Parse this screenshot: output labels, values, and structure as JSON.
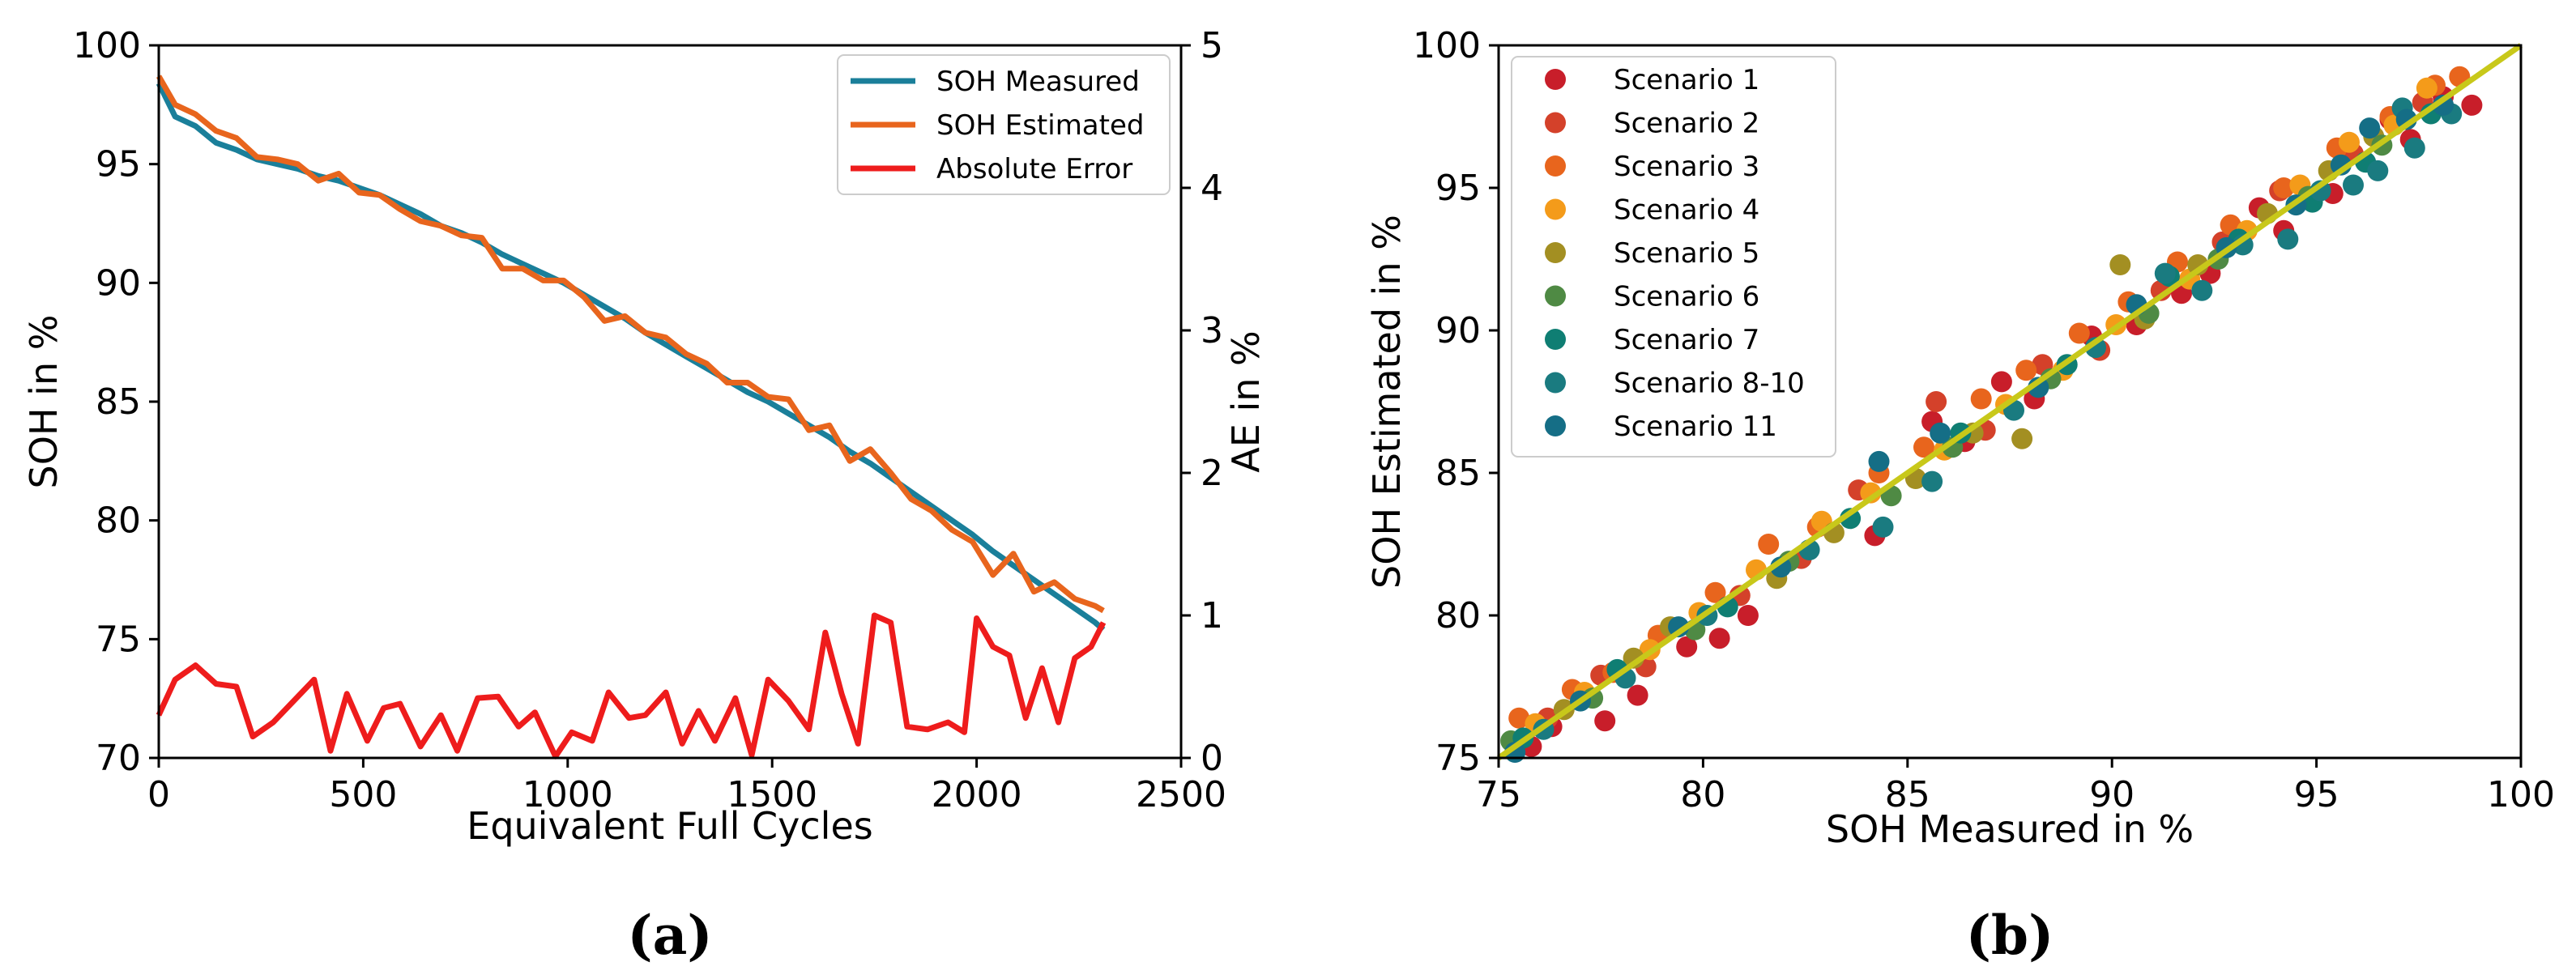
{
  "chart_data": [
    {
      "type": "line",
      "panel": "a",
      "caption": "(a)",
      "xlabel": "Equivalent Full Cycles",
      "ylabel": "SOH in %",
      "y2label": "AE in %",
      "xlim": [
        0,
        2500
      ],
      "ylim": [
        70,
        100
      ],
      "y2lim": [
        0,
        5
      ],
      "xticks": [
        "0",
        "500",
        "1000",
        "1500",
        "2000",
        "2500"
      ],
      "yticks": [
        "70",
        "75",
        "80",
        "85",
        "90",
        "95",
        "100"
      ],
      "y2ticks": [
        "0",
        "1",
        "2",
        "3",
        "4",
        "5"
      ],
      "legend_position": "top-right",
      "grid": false,
      "series": [
        {
          "name": "SOH Measured",
          "color": "#1a7f9a",
          "axis": "left",
          "x": [
            0,
            40,
            90,
            140,
            190,
            240,
            290,
            340,
            390,
            440,
            490,
            540,
            590,
            640,
            690,
            740,
            790,
            840,
            890,
            940,
            990,
            1040,
            1090,
            1140,
            1190,
            1240,
            1290,
            1340,
            1390,
            1440,
            1490,
            1540,
            1590,
            1640,
            1690,
            1740,
            1790,
            1840,
            1890,
            1940,
            1990,
            2040,
            2090,
            2140,
            2190,
            2240,
            2290,
            2310
          ],
          "values": [
            98.4,
            97.0,
            96.6,
            95.9,
            95.6,
            95.2,
            95.0,
            94.8,
            94.5,
            94.3,
            94.0,
            93.7,
            93.3,
            92.9,
            92.4,
            92.1,
            91.7,
            91.2,
            90.8,
            90.4,
            90.0,
            89.5,
            89.0,
            88.5,
            87.9,
            87.4,
            86.9,
            86.4,
            85.9,
            85.4,
            85.0,
            84.5,
            84.0,
            83.5,
            82.9,
            82.4,
            81.8,
            81.2,
            80.6,
            80.0,
            79.4,
            78.7,
            78.1,
            77.5,
            76.9,
            76.3,
            75.7,
            75.4
          ]
        },
        {
          "name": "SOH Estimated",
          "color": "#e8651d",
          "axis": "left",
          "x": [
            0,
            40,
            90,
            140,
            190,
            240,
            290,
            340,
            390,
            440,
            490,
            540,
            590,
            640,
            690,
            740,
            790,
            840,
            890,
            940,
            990,
            1040,
            1090,
            1140,
            1190,
            1240,
            1290,
            1340,
            1390,
            1440,
            1490,
            1540,
            1590,
            1640,
            1690,
            1740,
            1790,
            1840,
            1890,
            1940,
            1990,
            2040,
            2090,
            2140,
            2190,
            2240,
            2290,
            2310
          ],
          "values": [
            98.7,
            97.5,
            97.1,
            96.4,
            96.1,
            95.3,
            95.2,
            95.0,
            94.3,
            94.6,
            93.8,
            93.7,
            93.1,
            92.6,
            92.4,
            92.0,
            91.9,
            90.6,
            90.6,
            90.1,
            90.1,
            89.4,
            88.4,
            88.6,
            87.9,
            87.7,
            87.0,
            86.6,
            85.8,
            85.8,
            85.2,
            85.1,
            83.8,
            84.0,
            82.5,
            83.0,
            82.0,
            80.9,
            80.4,
            79.6,
            79.1,
            77.7,
            78.6,
            77.0,
            77.4,
            76.7,
            76.4,
            76.2
          ]
        },
        {
          "name": "Absolute Error",
          "color": "#ee1c1c",
          "axis": "right",
          "x": [
            0,
            40,
            90,
            140,
            190,
            230,
            280,
            330,
            380,
            420,
            460,
            510,
            550,
            590,
            640,
            690,
            730,
            780,
            830,
            880,
            920,
            970,
            1010,
            1060,
            1100,
            1150,
            1190,
            1240,
            1280,
            1320,
            1360,
            1410,
            1450,
            1490,
            1540,
            1590,
            1630,
            1670,
            1710,
            1750,
            1790,
            1830,
            1880,
            1930,
            1970,
            2000,
            2040,
            2080,
            2120,
            2160,
            2200,
            2240,
            2280,
            2310
          ],
          "values": [
            0.3,
            0.55,
            0.65,
            0.52,
            0.5,
            0.15,
            0.25,
            0.4,
            0.55,
            0.05,
            0.45,
            0.12,
            0.35,
            0.38,
            0.08,
            0.3,
            0.05,
            0.42,
            0.43,
            0.22,
            0.32,
            0.01,
            0.18,
            0.12,
            0.46,
            0.28,
            0.3,
            0.46,
            0.1,
            0.33,
            0.12,
            0.42,
            0.02,
            0.55,
            0.4,
            0.2,
            0.88,
            0.45,
            0.1,
            1.0,
            0.95,
            0.22,
            0.2,
            0.25,
            0.18,
            0.98,
            0.78,
            0.72,
            0.28,
            0.63,
            0.25,
            0.7,
            0.78,
            0.95
          ]
        }
      ]
    },
    {
      "type": "scatter",
      "panel": "b",
      "caption": "(b)",
      "xlabel": "SOH Measured in %",
      "ylabel": "SOH Estimated in %",
      "xlim": [
        75,
        100
      ],
      "ylim": [
        75,
        100
      ],
      "xticks": [
        "75",
        "80",
        "85",
        "90",
        "95",
        "100"
      ],
      "yticks": [
        "75",
        "80",
        "85",
        "90",
        "95",
        "100"
      ],
      "legend_position": "top-left",
      "grid": false,
      "reference_line": {
        "x": [
          75,
          100
        ],
        "y": [
          75,
          100
        ],
        "color": "#c8c81a"
      },
      "series": [
        {
          "name": "Scenario 1",
          "color": "#c81e2a",
          "points": [
            [
              75.8,
              75.4
            ],
            [
              76.3,
              76.1
            ],
            [
              77.6,
              76.3
            ],
            [
              78.4,
              77.2
            ],
            [
              79.6,
              78.9
            ],
            [
              80.4,
              79.2
            ],
            [
              81.1,
              80.0
            ],
            [
              84.2,
              82.8
            ],
            [
              85.6,
              86.8
            ],
            [
              86.4,
              86.1
            ],
            [
              87.3,
              88.2
            ],
            [
              88.1,
              87.6
            ],
            [
              89.5,
              89.8
            ],
            [
              90.6,
              90.2
            ],
            [
              91.7,
              91.3
            ],
            [
              92.4,
              92.0
            ],
            [
              93.6,
              94.3
            ],
            [
              94.2,
              93.5
            ],
            [
              95.4,
              94.8
            ],
            [
              96.8,
              97.4
            ],
            [
              97.3,
              96.7
            ],
            [
              98.1,
              98.2
            ],
            [
              98.8,
              97.9
            ]
          ]
        },
        {
          "name": "Scenario 2",
          "color": "#d4412a",
          "points": [
            [
              76.2,
              76.4
            ],
            [
              77.5,
              77.9
            ],
            [
              78.6,
              78.2
            ],
            [
              80.9,
              80.7
            ],
            [
              82.4,
              82.0
            ],
            [
              83.8,
              84.4
            ],
            [
              85.7,
              87.5
            ],
            [
              86.9,
              86.5
            ],
            [
              88.3,
              88.8
            ],
            [
              89.7,
              89.3
            ],
            [
              91.2,
              91.4
            ],
            [
              92.7,
              93.1
            ],
            [
              94.1,
              94.9
            ],
            [
              95.9,
              96.2
            ],
            [
              97.6,
              98.0
            ]
          ]
        },
        {
          "name": "Scenario 3",
          "color": "#e8651d",
          "points": [
            [
              75.5,
              76.4
            ],
            [
              76.8,
              77.4
            ],
            [
              77.8,
              78.0
            ],
            [
              78.9,
              79.3
            ],
            [
              80.3,
              80.8
            ],
            [
              81.6,
              82.5
            ],
            [
              82.8,
              83.1
            ],
            [
              84.3,
              85.0
            ],
            [
              85.4,
              85.9
            ],
            [
              86.8,
              87.6
            ],
            [
              87.9,
              88.6
            ],
            [
              89.2,
              89.9
            ],
            [
              90.4,
              91.0
            ],
            [
              91.6,
              92.4
            ],
            [
              92.9,
              93.7
            ],
            [
              94.2,
              95.0
            ],
            [
              95.5,
              96.4
            ],
            [
              96.8,
              97.5
            ],
            [
              97.9,
              98.6
            ],
            [
              98.5,
              98.9
            ]
          ]
        },
        {
          "name": "Scenario 4",
          "color": "#f49b1a",
          "points": [
            [
              75.9,
              76.2
            ],
            [
              77.1,
              77.3
            ],
            [
              78.7,
              78.8
            ],
            [
              79.9,
              80.1
            ],
            [
              81.3,
              81.6
            ],
            [
              82.9,
              83.3
            ],
            [
              84.1,
              84.3
            ],
            [
              85.9,
              85.8
            ],
            [
              87.4,
              87.4
            ],
            [
              88.8,
              88.6
            ],
            [
              90.1,
              90.2
            ],
            [
              91.9,
              91.8
            ],
            [
              93.3,
              93.5
            ],
            [
              94.6,
              95.1
            ],
            [
              95.8,
              96.6
            ],
            [
              96.9,
              97.2
            ],
            [
              97.7,
              98.5
            ]
          ]
        },
        {
          "name": "Scenario 5",
          "color": "#a38f22",
          "points": [
            [
              76.6,
              76.7
            ],
            [
              78.3,
              78.5
            ],
            [
              79.2,
              79.6
            ],
            [
              81.8,
              81.3
            ],
            [
              83.2,
              82.9
            ],
            [
              85.2,
              84.8
            ],
            [
              86.6,
              86.4
            ],
            [
              87.8,
              86.2
            ],
            [
              90.2,
              92.3
            ],
            [
              90.8,
              90.4
            ],
            [
              92.1,
              92.3
            ],
            [
              93.8,
              94.1
            ],
            [
              95.3,
              95.6
            ],
            [
              96.4,
              96.8
            ]
          ]
        },
        {
          "name": "Scenario 6",
          "color": "#4f8a44",
          "points": [
            [
              75.3,
              75.6
            ],
            [
              77.3,
              77.1
            ],
            [
              79.8,
              79.5
            ],
            [
              82.1,
              81.9
            ],
            [
              84.6,
              84.2
            ],
            [
              86.1,
              85.9
            ],
            [
              88.5,
              88.3
            ],
            [
              90.9,
              90.6
            ],
            [
              92.6,
              92.5
            ],
            [
              94.8,
              94.7
            ],
            [
              96.6,
              96.5
            ]
          ]
        },
        {
          "name": "Scenario 7",
          "color": "#0f7e73",
          "points": [
            [
              75.6,
              75.7
            ],
            [
              77.9,
              78.1
            ],
            [
              80.6,
              80.3
            ],
            [
              83.6,
              83.4
            ],
            [
              86.3,
              86.4
            ],
            [
              88.9,
              88.8
            ],
            [
              91.4,
              91.9
            ],
            [
              93.1,
              93.2
            ],
            [
              94.9,
              94.5
            ],
            [
              96.2,
              95.9
            ],
            [
              97.8,
              97.6
            ]
          ]
        },
        {
          "name": "Scenario 8-10",
          "color": "#1a7b80",
          "points": [
            [
              76.1,
              76.0
            ],
            [
              78.1,
              77.8
            ],
            [
              80.1,
              80.0
            ],
            [
              82.6,
              82.3
            ],
            [
              84.4,
              83.1
            ],
            [
              85.6,
              84.7
            ],
            [
              87.6,
              87.2
            ],
            [
              89.6,
              89.4
            ],
            [
              91.3,
              92.0
            ],
            [
              92.2,
              91.4
            ],
            [
              93.2,
              93.0
            ],
            [
              94.3,
              93.2
            ],
            [
              95.1,
              94.9
            ],
            [
              95.9,
              95.1
            ],
            [
              96.5,
              95.6
            ],
            [
              97.1,
              97.8
            ],
            [
              97.4,
              96.4
            ],
            [
              98.3,
              97.6
            ]
          ]
        },
        {
          "name": "Scenario 11",
          "color": "#156e86",
          "points": [
            [
              75.4,
              75.2
            ],
            [
              77.0,
              77.0
            ],
            [
              79.4,
              79.6
            ],
            [
              81.9,
              81.7
            ],
            [
              84.3,
              85.4
            ],
            [
              85.8,
              86.4
            ],
            [
              88.2,
              88.0
            ],
            [
              90.6,
              90.9
            ],
            [
              92.8,
              92.9
            ],
            [
              94.5,
              94.4
            ],
            [
              95.6,
              95.8
            ],
            [
              96.3,
              97.1
            ],
            [
              97.2,
              97.4
            ],
            [
              98.1,
              97.9
            ]
          ]
        }
      ]
    }
  ]
}
